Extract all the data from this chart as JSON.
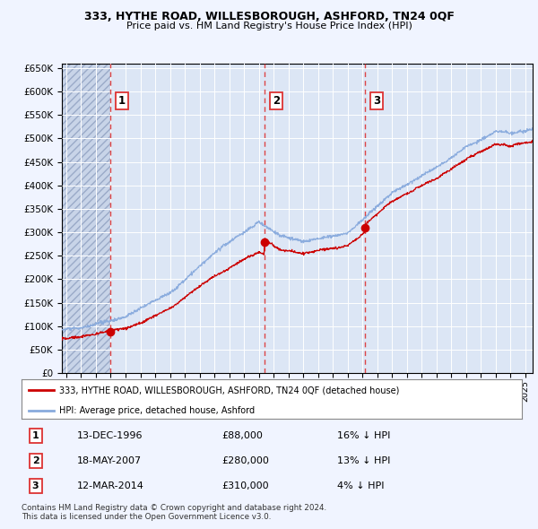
{
  "title1": "333, HYTHE ROAD, WILLESBOROUGH, ASHFORD, TN24 0QF",
  "title2": "Price paid vs. HM Land Registry's House Price Index (HPI)",
  "background_color": "#f0f4ff",
  "plot_bg": "#dce6f5",
  "ylim": [
    0,
    660000
  ],
  "yticks": [
    0,
    50000,
    100000,
    150000,
    200000,
    250000,
    300000,
    350000,
    400000,
    450000,
    500000,
    550000,
    600000,
    650000
  ],
  "ytick_labels": [
    "£0",
    "£50K",
    "£100K",
    "£150K",
    "£200K",
    "£250K",
    "£300K",
    "£350K",
    "£400K",
    "£450K",
    "£500K",
    "£550K",
    "£600K",
    "£650K"
  ],
  "xlim_start": 1993.7,
  "xlim_end": 2025.5,
  "sale_dates": [
    1996.95,
    2007.38,
    2014.19
  ],
  "sale_prices": [
    88000,
    280000,
    310000
  ],
  "sale_labels": [
    "1",
    "2",
    "3"
  ],
  "legend_line1": "333, HYTHE ROAD, WILLESBOROUGH, ASHFORD, TN24 0QF (detached house)",
  "legend_line2": "HPI: Average price, detached house, Ashford",
  "table_rows": [
    {
      "num": "1",
      "date": "13-DEC-1996",
      "price": "£88,000",
      "pct": "16% ↓ HPI"
    },
    {
      "num": "2",
      "date": "18-MAY-2007",
      "price": "£280,000",
      "pct": "13% ↓ HPI"
    },
    {
      "num": "3",
      "date": "12-MAR-2014",
      "price": "£310,000",
      "pct": "4% ↓ HPI"
    }
  ],
  "footnote": "Contains HM Land Registry data © Crown copyright and database right 2024.\nThis data is licensed under the Open Government Licence v3.0.",
  "red_line_color": "#cc0000",
  "blue_line_color": "#88aadd",
  "dot_color": "#cc0000",
  "vline_color": "#dd3333",
  "hatch_color": "#c8d4e8"
}
